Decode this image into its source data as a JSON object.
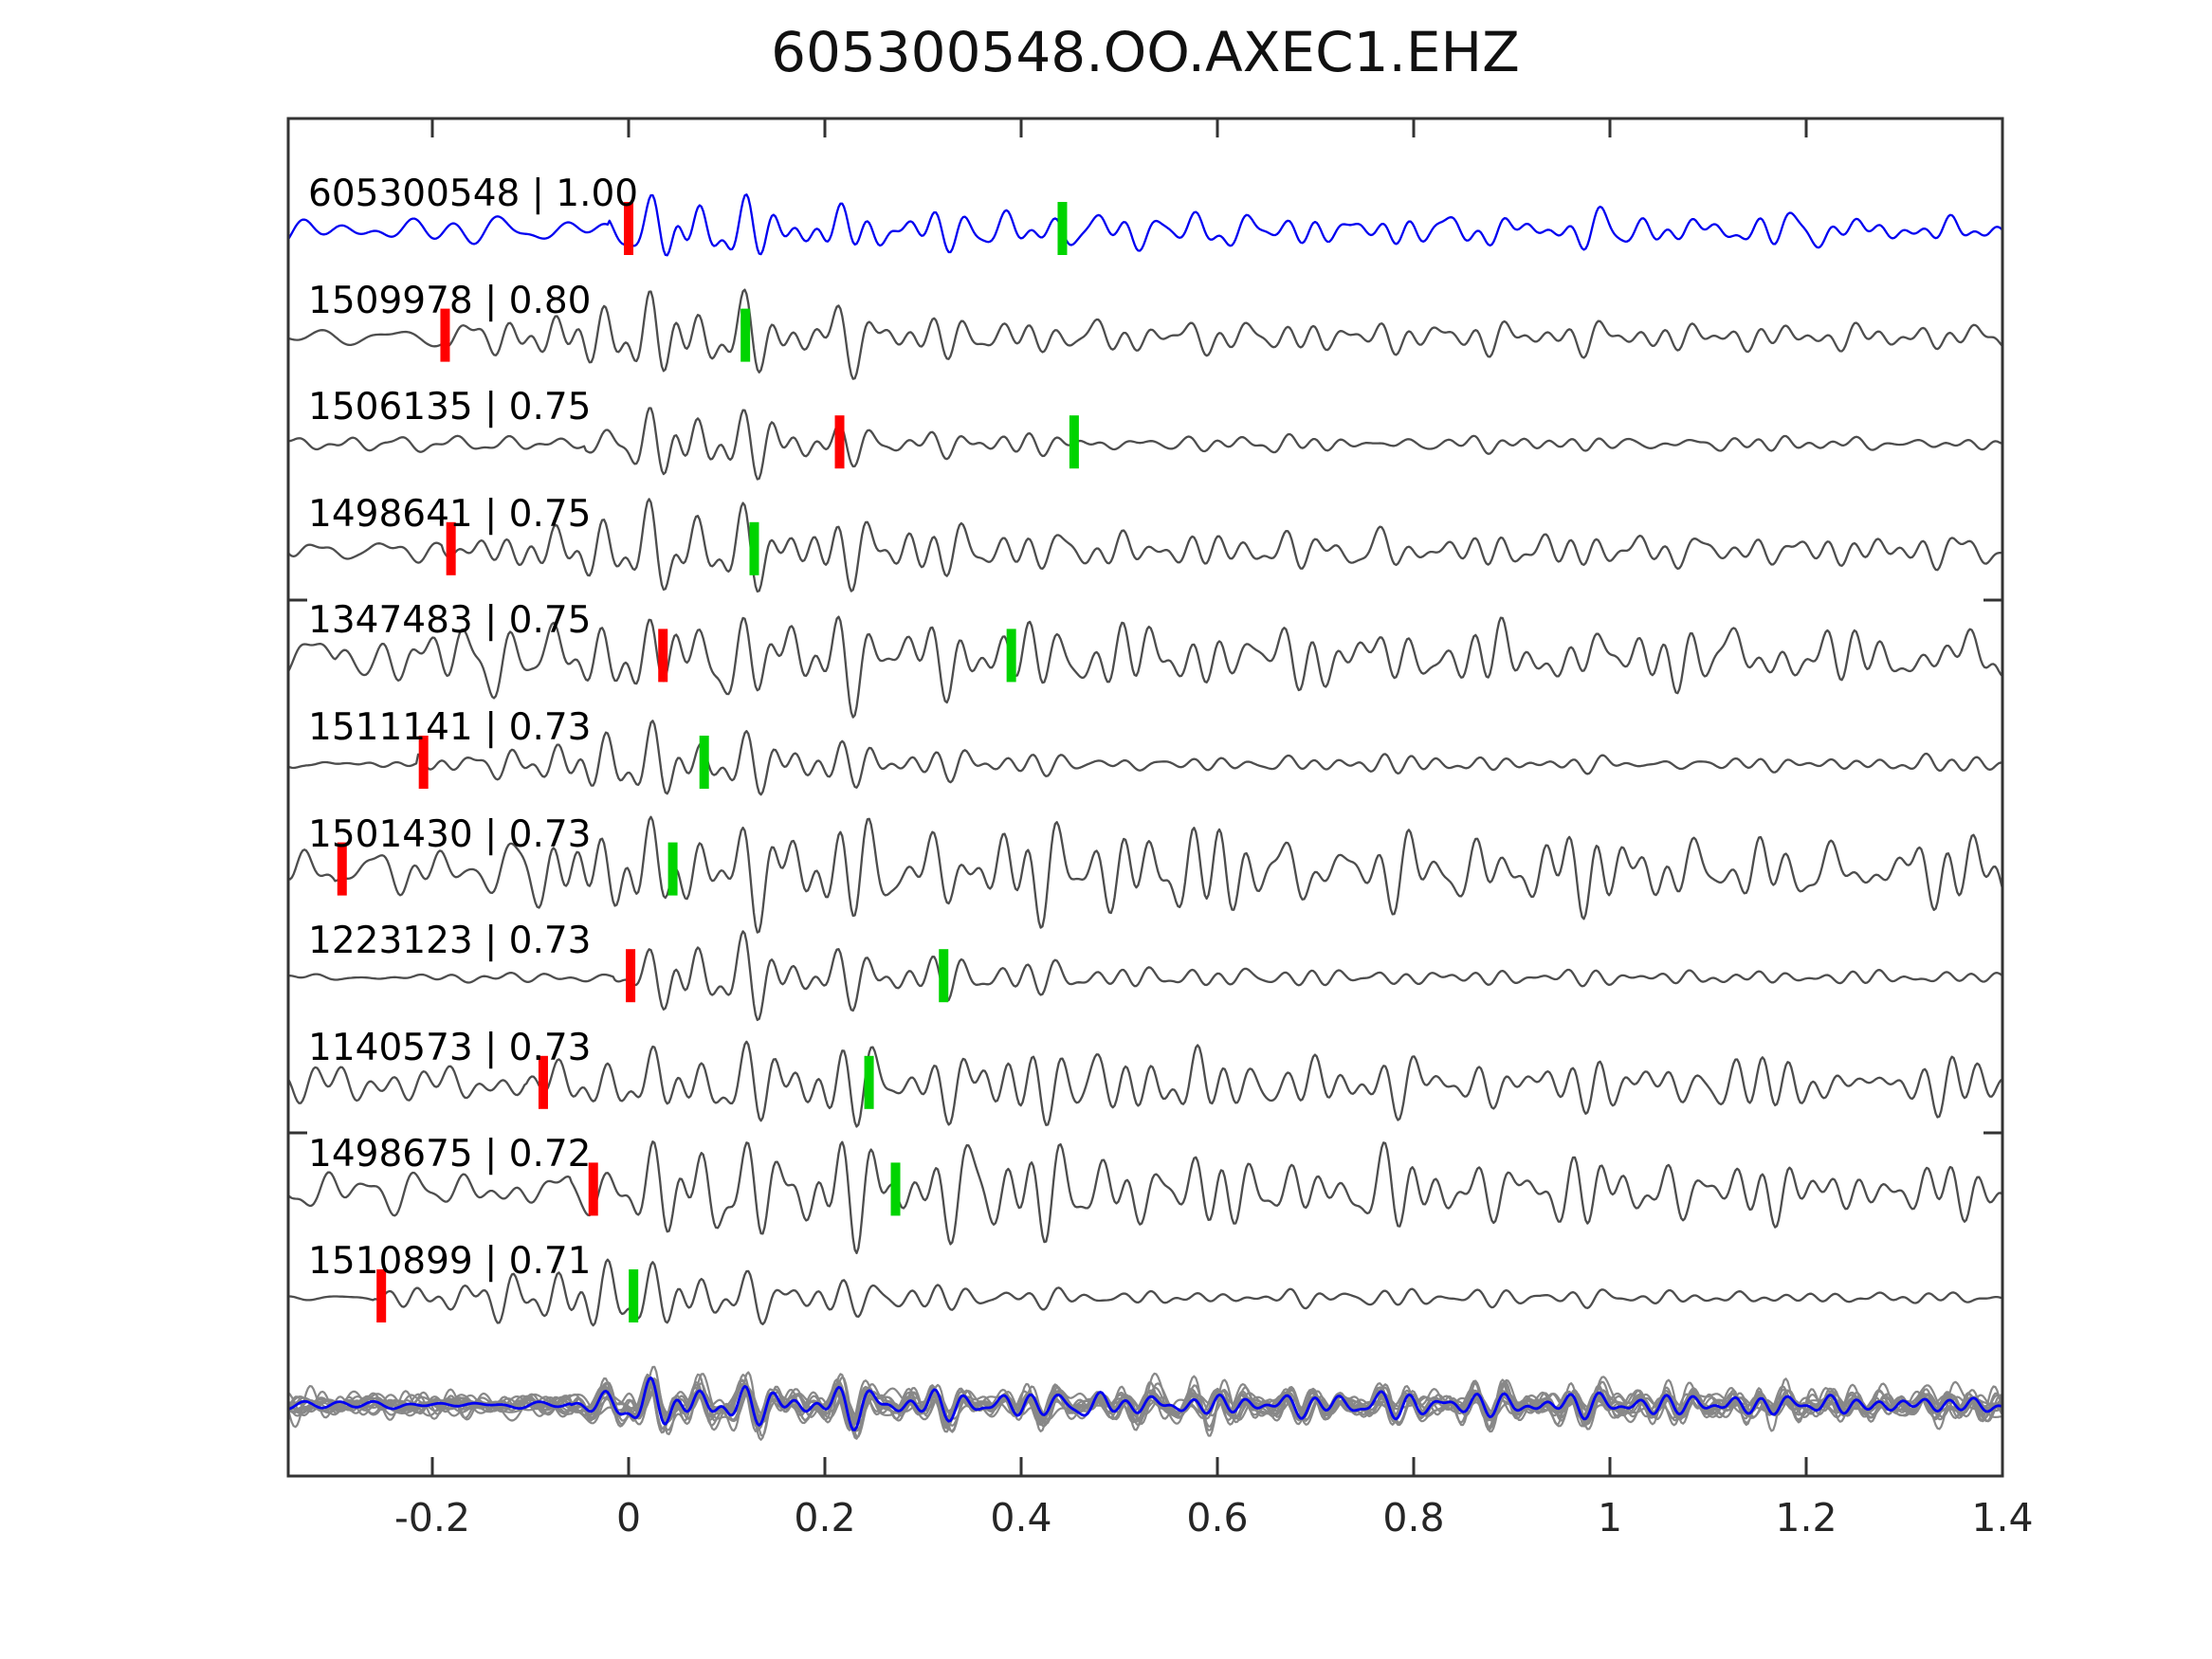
{
  "title": "605300548.OO.AXEC1.EHZ",
  "chart_data": {
    "type": "line",
    "kind": "seismic-waveform-correlation-stack",
    "title": "605300548.OO.AXEC1.EHZ",
    "xlabel": "",
    "ylabel": "",
    "xlim": [
      -0.347,
      1.4
    ],
    "grid": false,
    "legend": "none",
    "x_ticks": [
      "-0.2",
      "0",
      "0.2",
      "0.4",
      "0.6",
      "0.8",
      "1",
      "1.2",
      "1.4"
    ],
    "x_tick_values": [
      -0.2,
      0,
      0.2,
      0.4,
      0.6,
      0.8,
      1.0,
      1.2,
      1.4
    ],
    "colors": {
      "template_trace": "#0000f0",
      "detection_trace": "#4d4d4d",
      "overlay_gray": "#888888",
      "pick_red": "#ff0000",
      "pick_green": "#00d400",
      "frame": "#333333",
      "label_text": "#000000",
      "tick_text": "#262626"
    },
    "traces": [
      {
        "id": "605300548",
        "corr": "1.00",
        "label": "605300548 | 1.00",
        "is_template": true,
        "red_pick": 0.0,
        "green_pick": 0.442,
        "synth": {
          "seed": 101,
          "pre": 11,
          "amp": 62,
          "onset": -0.02,
          "peak": 0.055,
          "tau": 0.22,
          "coda": 0.2
        }
      },
      {
        "id": "1509978",
        "corr": "0.80",
        "label": "1509978 | 0.80",
        "is_template": false,
        "red_pick": -0.187,
        "green_pick": 0.119,
        "synth": {
          "seed": 202,
          "pre": 8,
          "amp": 82,
          "onset": -0.19,
          "peak": 0.035,
          "tau": 0.22,
          "coda": 0.18
        }
      },
      {
        "id": "1506135",
        "corr": "0.75",
        "label": "1506135 | 0.75",
        "is_template": false,
        "red_pick": 0.215,
        "green_pick": 0.454,
        "synth": {
          "seed": 303,
          "pre": 6,
          "amp": 78,
          "onset": -0.045,
          "peak": 0.045,
          "tau": 0.16,
          "coda": 0.07
        }
      },
      {
        "id": "1498641",
        "corr": "0.75",
        "label": "1498641 | 0.75",
        "is_template": false,
        "red_pick": -0.181,
        "green_pick": 0.128,
        "synth": {
          "seed": 404,
          "pre": 10,
          "amp": 80,
          "onset": -0.19,
          "peak": 0.05,
          "tau": 0.26,
          "coda": 0.2
        }
      },
      {
        "id": "1347483",
        "corr": "0.75",
        "label": "1347483 | 0.75",
        "is_template": false,
        "red_pick": 0.035,
        "green_pick": 0.39,
        "synth": {
          "seed": 505,
          "pre": 20,
          "amp": 66,
          "onset": -0.3,
          "peak": 0.07,
          "tau": 0.45,
          "coda": 0.38
        }
      },
      {
        "id": "1511141",
        "corr": "0.73",
        "label": "1511141 | 0.73",
        "is_template": false,
        "red_pick": -0.209,
        "green_pick": 0.077,
        "synth": {
          "seed": 606,
          "pre": 4,
          "amp": 72,
          "onset": -0.215,
          "peak": 0.03,
          "tau": 0.2,
          "coda": 0.1
        }
      },
      {
        "id": "1501430",
        "corr": "0.73",
        "label": "1501430 | 0.73",
        "is_template": false,
        "red_pick": -0.292,
        "green_pick": 0.045,
        "synth": {
          "seed": 707,
          "pre": 20,
          "amp": 70,
          "onset": -0.3,
          "peak": 0.08,
          "tau": 0.55,
          "coda": 0.4
        }
      },
      {
        "id": "1223123",
        "corr": "0.73",
        "label": "1223123 | 0.73",
        "is_template": false,
        "red_pick": 0.002,
        "green_pick": 0.321,
        "synth": {
          "seed": 808,
          "pre": 4,
          "amp": 78,
          "onset": -0.015,
          "peak": 0.06,
          "tau": 0.22,
          "coda": 0.1
        }
      },
      {
        "id": "1140573",
        "corr": "0.73",
        "label": "1140573 | 0.73",
        "is_template": false,
        "red_pick": -0.087,
        "green_pick": 0.245,
        "synth": {
          "seed": 909,
          "pre": 15,
          "amp": 66,
          "onset": -0.105,
          "peak": 0.05,
          "tau": 0.45,
          "coda": 0.35
        }
      },
      {
        "id": "1498675",
        "corr": "0.72",
        "label": "1498675 | 0.72",
        "is_template": false,
        "red_pick": -0.036,
        "green_pick": 0.272,
        "synth": {
          "seed": 1010,
          "pre": 17,
          "amp": 80,
          "onset": -0.06,
          "peak": 0.08,
          "tau": 0.42,
          "coda": 0.36
        }
      },
      {
        "id": "1510899",
        "corr": "0.71",
        "label": "1510899 | 0.71",
        "is_template": false,
        "red_pick": -0.252,
        "green_pick": 0.005,
        "synth": {
          "seed": 1111,
          "pre": 5,
          "amp": 70,
          "onset": -0.26,
          "peak": 0.01,
          "tau": 0.18,
          "coda": 0.1
        }
      }
    ],
    "overlay_row": {
      "description": "all detections overlaid in gray with blue template on top",
      "gray_count": 13,
      "synth": {
        "seed": 4242,
        "amp": 44,
        "onset": -0.06,
        "peak": 0.03,
        "tau": 0.3,
        "coda": 0.3
      },
      "blue_amp": 42
    },
    "master_seed": 12345
  }
}
